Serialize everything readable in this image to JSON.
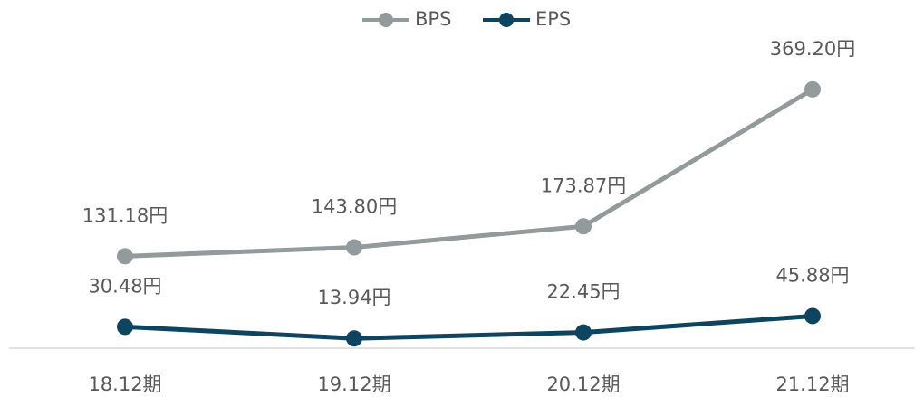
{
  "chart_data": {
    "type": "line",
    "categories": [
      "18.12期",
      "19.12期",
      "20.12期",
      "21.12期"
    ],
    "series": [
      {
        "name": "BPS",
        "color": "#939a9c",
        "values": [
          131.18,
          143.8,
          173.87,
          369.2
        ],
        "value_labels": [
          "131.18円",
          "143.80円",
          "173.87円",
          "369.20円"
        ]
      },
      {
        "name": "EPS",
        "color": "#0d4561",
        "values": [
          30.48,
          13.94,
          22.45,
          45.88
        ],
        "value_labels": [
          "30.48円",
          "13.94円",
          "22.45円",
          "45.88円"
        ]
      }
    ],
    "ylim": [
      0,
      400
    ],
    "legend": "top"
  }
}
